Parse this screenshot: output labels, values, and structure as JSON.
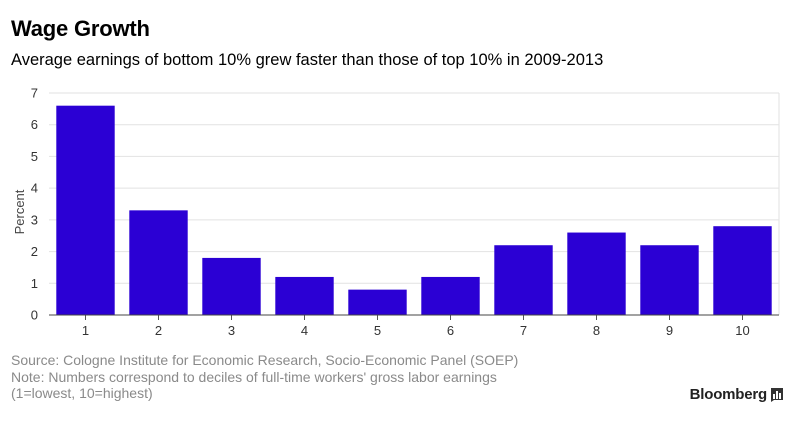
{
  "title": "Wage Growth",
  "subtitle": "Average earnings of bottom 10% grew faster than those of top 10% in 2009-2013",
  "chart_data": {
    "type": "bar",
    "categories": [
      "1",
      "2",
      "3",
      "4",
      "5",
      "6",
      "7",
      "8",
      "9",
      "10"
    ],
    "values": [
      6.6,
      3.3,
      1.8,
      1.2,
      0.8,
      1.2,
      2.2,
      2.6,
      2.2,
      2.8
    ],
    "xlabel": "",
    "ylabel": "Percent",
    "ylim": [
      0,
      7
    ],
    "yticks": [
      0,
      1,
      2,
      3,
      4,
      5,
      6,
      7
    ],
    "grid": true,
    "bar_color": "#2b00d4"
  },
  "source": "Source: Cologne Institute for Economic Research, Socio-Economic Panel (SOEP)",
  "note_line1": "Note: Numbers correspond to deciles of full-time workers' gross labor earnings",
  "note_line2": "(1=lowest, 10=highest)",
  "brand": "Bloomberg",
  "brand_icon": "bloomberg-chart-icon"
}
